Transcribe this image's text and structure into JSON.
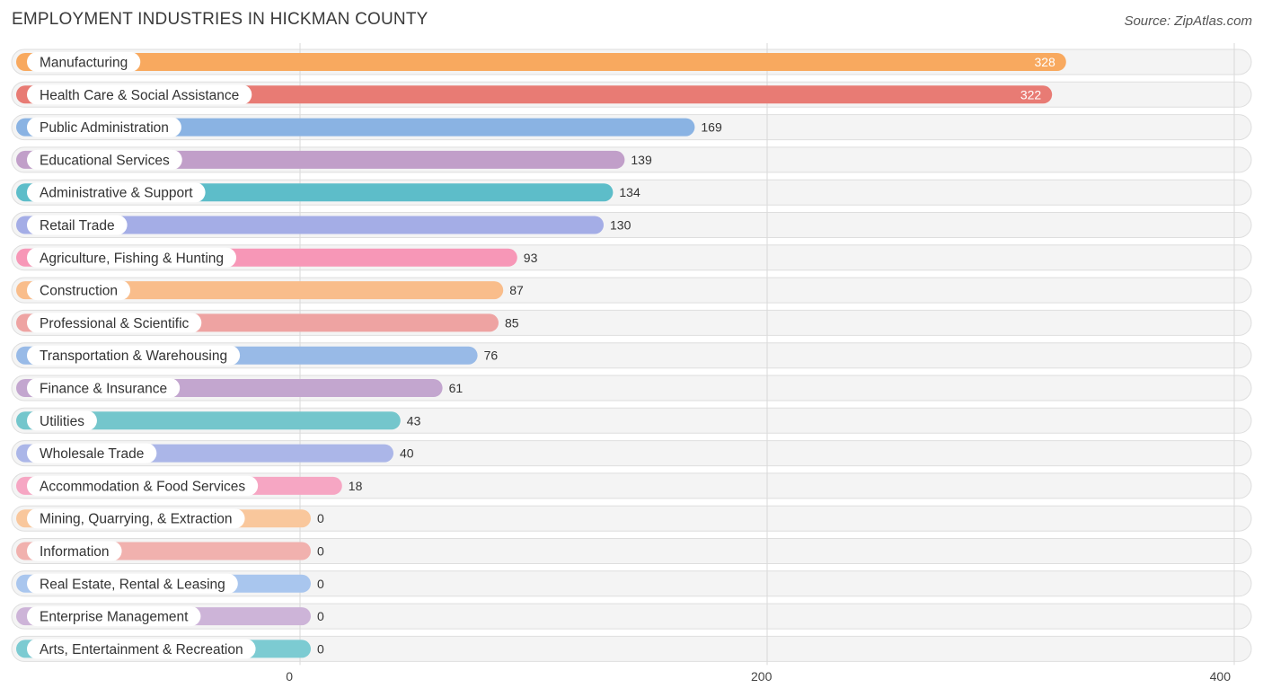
{
  "title": "EMPLOYMENT INDUSTRIES IN HICKMAN COUNTY",
  "source": "Source: ZipAtlas.com",
  "chart_data": {
    "type": "bar",
    "orientation": "horizontal",
    "title": "EMPLOYMENT INDUSTRIES IN HICKMAN COUNTY",
    "xlim": [
      0,
      400
    ],
    "xticks": [
      0,
      200,
      400
    ],
    "grid": true,
    "categories": [
      "Manufacturing",
      "Health Care & Social Assistance",
      "Public Administration",
      "Educational Services",
      "Administrative & Support",
      "Retail Trade",
      "Agriculture, Fishing & Hunting",
      "Construction",
      "Professional & Scientific",
      "Transportation & Warehousing",
      "Finance & Insurance",
      "Utilities",
      "Wholesale Trade",
      "Accommodation & Food Services",
      "Mining, Quarrying, & Extraction",
      "Information",
      "Real Estate, Rental & Leasing",
      "Enterprise Management",
      "Arts, Entertainment & Recreation"
    ],
    "values": [
      328,
      322,
      169,
      139,
      134,
      130,
      93,
      87,
      85,
      76,
      61,
      43,
      40,
      18,
      0,
      0,
      0,
      0,
      0
    ],
    "colors": [
      "#f8a95f",
      "#e87b74",
      "#8ab3e3",
      "#c19fc9",
      "#5dbdc9",
      "#a4ade6",
      "#f797b7",
      "#f9bd8b",
      "#eea3a2",
      "#98bae7",
      "#c3a6cf",
      "#74c6cc",
      "#abb6e8",
      "#f6a6c3",
      "#f9c79c",
      "#f1b1ae",
      "#a9c6ee",
      "#cdb4d8",
      "#7ccbd2"
    ]
  }
}
